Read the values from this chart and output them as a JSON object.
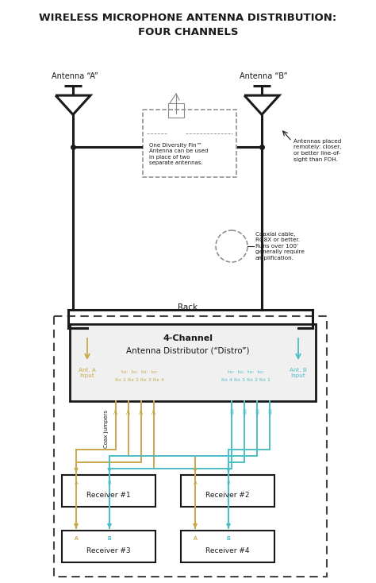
{
  "title_line1": "WIRELESS MICROPHONE ANTENNA DISTRIBUTION:",
  "title_line2": "FOUR CHANNELS",
  "bg_color": "#ffffff",
  "ant_a_label": "Antenna “A”",
  "ant_b_label": "Antenna “B”",
  "diversity_fin_text": "One Diversity Fin™\nAntenna can be used\nin place of two\nseparate antennas.",
  "coax_cable_text": "Coaxial cable,\nRG8X or better.\nRuns over 100’\ngenerally require\namplification.",
  "ant_placed_text": "Antennas placed\nremotely: closer,\nor better line-of-\nsight than FOH.",
  "rack_label": "Rack",
  "distro_label1": "4-Channel",
  "distro_label2": "Antenna Distributor (“Distro”)",
  "ant_a_input": "Ant. A\nInput",
  "ant_b_input": "Ant. B\nInput",
  "to_labels_a": "to:  to:  to:  to:\nRx 1 Rx 2 Rx 3 Rx 4",
  "to_labels_b": "to:  to:  to:  to:\nRx 4 Rx 3 Rx 2 Rx 1",
  "coax_jumpers": "Coax jumpers",
  "receiver_labels": [
    "Receiver #1",
    "Receiver #2",
    "Receiver #3",
    "Receiver #4"
  ],
  "color_a": "#c8a84b",
  "color_b": "#4bbec8",
  "color_dark": "#1a1a1a",
  "color_gray": "#888888"
}
